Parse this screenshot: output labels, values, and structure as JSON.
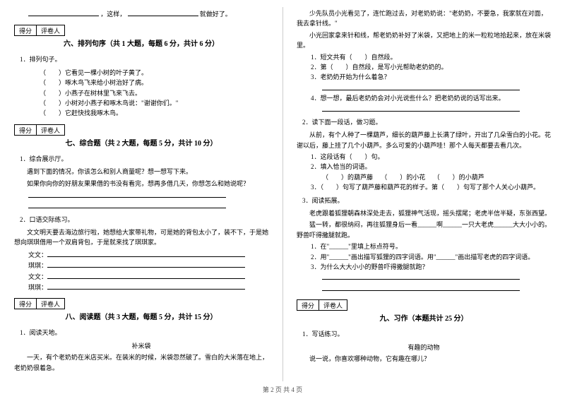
{
  "left": {
    "top_line_prefix": "，这样，",
    "top_line_suffix": "就做好了。",
    "score_labels": [
      "得分",
      "评卷人"
    ],
    "sec6_title": "六、排列句序（共 1 大题，每题 6 分，共计 6 分）",
    "sec6_q": "1．排列句子。",
    "sec6_items": [
      "它看见一棵小树的叶子黄了。",
      "啄木鸟飞来给小树治好了病。",
      "小燕子在树林里飞来飞去。",
      "小树对小燕子和啄木鸟说：\"谢谢你们。\"",
      "它赶快找我啄木鸟。"
    ],
    "sec7_title": "七、综合题（共 2 大题，每题 5 分，共计 10 分）",
    "sec7_q1": "1．综合展示厅。",
    "sec7_q1_lines": [
      "遇到下面的情况，你该怎么和别人商量呢？想一想写下来。",
      "如果你向你的好朋友果果借的书没有看完，想再多借几天，你想怎么和她说呢？"
    ],
    "sec7_q2": "2．口语交际练习。",
    "sec7_q2_text": "文文明天要去海边旅行啦，她想给大家带礼物，可是她的背包太小了，装不下，于是她想向琪琪借用一个双肩背包，于是就来找了琪琪家。",
    "sec7_labels": [
      "文文：",
      "琪琪：",
      "文文：",
      "琪琪："
    ],
    "sec8_title": "八、阅读题（共 3 大题，每题 5 分，共计 15 分）",
    "sec8_q1": "1．阅读天地。",
    "sec8_story_title": "补米袋",
    "sec8_story": "一天，有个老奶奶在米店买米。在装米的时候，米袋忽然破了。雪白的大米落在地上，老奶奶很着急。"
  },
  "right": {
    "story_cont": [
      "少先队员小光看见了，连忙跑过去，对老奶奶说：\"老奶奶，不要急，我家就在对面，我去拿针线。\"",
      "小光回家拿来针和线，帮老奶奶补好了米袋，又把地上的米一粒粒地拾起来，放在米袋里。"
    ],
    "q1_items": [
      {
        "num": "1．",
        "text_a": "短文共有（　　）自然段。"
      },
      {
        "num": "2．",
        "text_a": "第（　　）自然段，是写小光帮助老奶奶的。"
      },
      {
        "num": "3．",
        "text_a": "老奶奶开始为什么着急？"
      },
      {
        "num": "4．",
        "text_a": "想一想，最后老奶奶会对小光说些什么？把老奶奶说的话写出来。"
      }
    ],
    "sec8_q2": "2．读下面一段话，做习题。",
    "sec8_q2_text": "从前，有个人种了一棵葫芦，细长的葫芦藤上长满了绿叶，开出了几朵雪白的小花。花谢以后，藤上挂了几个小葫芦。多么可爱的小葫芦哇！那个人每天都要去看几次。",
    "sec8_q2_items": [
      "1．这段话有（　　）句。",
      "2．填入恰当的词语。"
    ],
    "sec8_q2_fill": [
      "（　　）的葫芦藤",
      "（　　）的小花",
      "（　　）的小葫芦"
    ],
    "sec8_q2_item3": "3．（　　）句写了葫芦藤和葫芦花的样子。第（　　）句写了那个人关心小葫芦。",
    "sec8_q3": "3．阅读拓展。",
    "sec8_q3_text1": "老虎跟着狐狸朝森林深处走去，狐狸神气活现，摇头摆尾；老虎半信半疑，东张西望。",
    "sec8_q3_text2": "猛一转，都很纳闷，再往狐狸身后一看______啊______一只大老虎______大大小小的。野兽吓得撒腿就跑。",
    "sec8_q3_items": [
      "1．在\"______\"里填上标点符号。",
      "2．用\"______\"画出描写狐狸的四字词语。用\"______\"画出描写老虎的四字词语。",
      "3．为什么大大小小的野兽吓得撒腿就跑？"
    ],
    "score_labels": [
      "得分",
      "评卷人"
    ],
    "sec9_title": "九、习作（本题共计 25 分）",
    "sec9_q": "1．写话练习。",
    "sec9_story_title": "有趣的动物",
    "sec9_text": "说一说，你喜欢哪种动物，它有趣在哪儿？"
  },
  "footer": "第 2 页  共 4 页"
}
